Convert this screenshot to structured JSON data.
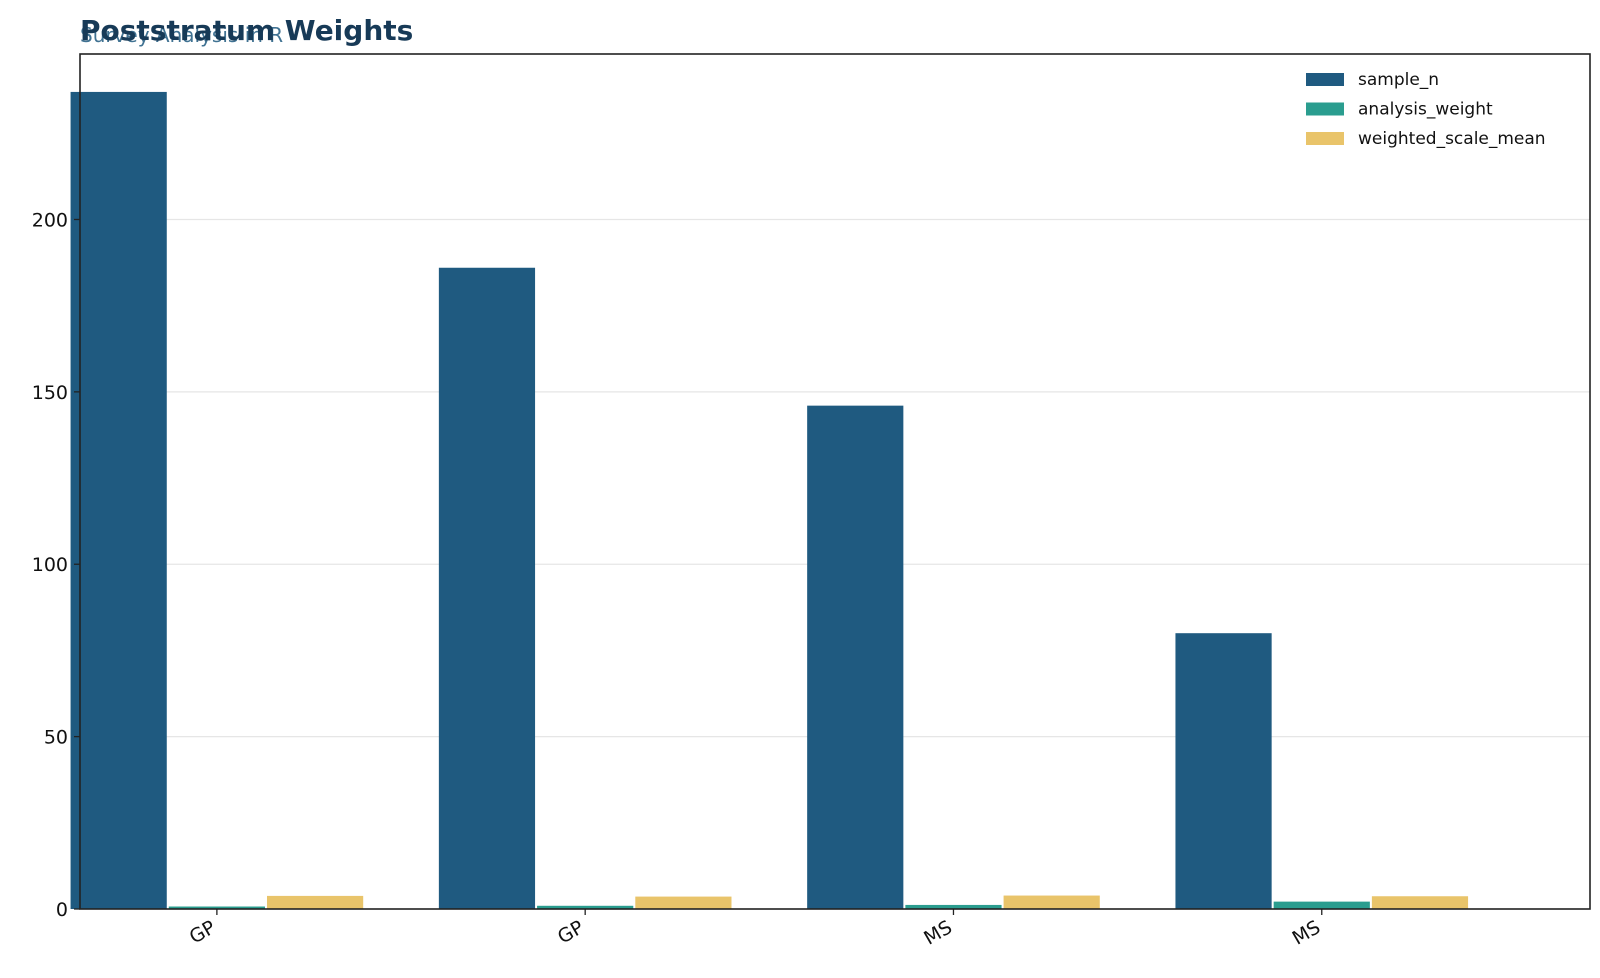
{
  "chart_data": {
    "type": "bar",
    "title": "Poststratum Weights",
    "subtitle": "Survey Analysis in R",
    "xlabel": "",
    "ylabel": "",
    "categories": [
      "GP",
      "GP",
      "MS",
      "MS"
    ],
    "series": [
      {
        "name": "sample_n",
        "color": "#1f5a80",
        "values": [
          237,
          186,
          146,
          80
        ]
      },
      {
        "name": "analysis_weight",
        "color": "#2a9d8f",
        "values": [
          0.72,
          0.93,
          1.18,
          2.14
        ]
      },
      {
        "name": "weighted_scale_mean",
        "color": "#e9c46a",
        "values": [
          3.8,
          3.6,
          3.9,
          3.7
        ]
      }
    ],
    "ylim": [
      0,
      248
    ],
    "yticks": [
      0,
      50,
      100,
      150,
      200
    ],
    "grid": true,
    "legend_position": "top-right"
  }
}
